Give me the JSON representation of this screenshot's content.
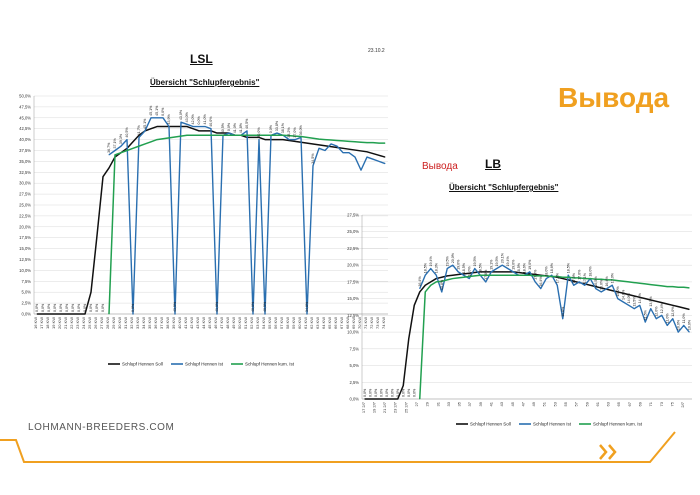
{
  "page": {
    "brand": "LOHMANN-BREEDERS.COM",
    "overlay_word_large": "Вывода",
    "overlay_word_small": "Вывода"
  },
  "chart_data": [
    {
      "type": "line",
      "title": "LSL",
      "subtitle": "Übersicht \"Schlupfergebnis\"",
      "date_stamp": "23.10.2",
      "x_labels": [
        "16 KW",
        "17 KW",
        "18 KW",
        "19 KW",
        "20 KW",
        "21 KW",
        "22 KW",
        "23 KW",
        "24 KW",
        "25 KW",
        "26 KW",
        "27 KW",
        "28 KW",
        "29 KW",
        "30 KW",
        "31 KW",
        "32 KW",
        "33 KW",
        "34 KW",
        "35 KW",
        "36 KW",
        "37 KW",
        "38 KW",
        "39 KW",
        "40 KW",
        "41 KW",
        "42 KW",
        "43 KW",
        "44 KW",
        "45 KW",
        "46 KW",
        "47 KW",
        "48 KW",
        "49 KW",
        "50 KW",
        "51 KW",
        "52 KW",
        "53 KW",
        "54 KW",
        "55 KW",
        "56 KW",
        "57 KW",
        "58 KW",
        "59 KW",
        "60 KW",
        "61 KW",
        "62 KW",
        "63 KW",
        "64 KW",
        "65 KW",
        "66 KW",
        "67 KW",
        "68 KW",
        "69 KW",
        "70 KW",
        "71 KW",
        "72 KW",
        "73 KW",
        "74 KW"
      ],
      "x_tick_labels": [
        "16 KW",
        "17 KW",
        "18 KW",
        "19 KW",
        "20 KW",
        "21 KW",
        "22 KW",
        "23 KW",
        "24 KW",
        "25 KW",
        "26 KW",
        "27 KW",
        "28 KW",
        "29 KW",
        "30 KW",
        "31 KW",
        "32 KW",
        "33 KW",
        "34 KW",
        "35 KW",
        "36 KW",
        "37 KW",
        "38 KW",
        "39 KW",
        "40 KW",
        "41 KW",
        "42 KW",
        "43 KW",
        "44 KW",
        "45 KW",
        "46 KW",
        "47 KW",
        "48 KW",
        "49 KW",
        "50 KW",
        "51 KW",
        "52 KW",
        "53 KW",
        "54 KW",
        "55 KW",
        "56 KW",
        "57 KW",
        "58 KW",
        "59 KW",
        "60 KW",
        "61 KW",
        "62 KW",
        "63 KW",
        "64 KW",
        "65 KW",
        "66 KW",
        "67 KW",
        "68 KW",
        "69 KW",
        "70 KW",
        "71 KW",
        "72 KW",
        "73 KW",
        "74 KW"
      ],
      "ylim": [
        0,
        50
      ],
      "y_ticks": [
        0,
        2.5,
        5,
        7.5,
        10,
        12.5,
        15,
        17.5,
        20,
        22.5,
        25,
        27.5,
        30,
        32.5,
        35,
        37.5,
        40,
        42.5,
        45,
        47.5,
        50
      ],
      "y_tick_labels": [
        "0,0%",
        "2,5%",
        "5,0%",
        "7,5%",
        "10,0%",
        "12,5%",
        "15,0%",
        "17,5%",
        "20,0%",
        "22,5%",
        "25,0%",
        "27,5%",
        "30,0%",
        "32,5%",
        "35,0%",
        "37,5%",
        "40,0%",
        "42,5%",
        "45,0%",
        "47,5%",
        "50,0%"
      ],
      "grid": true,
      "legend_position": "bottom",
      "series": [
        {
          "name": "Schlupf Hennen Soll",
          "color": "#111111",
          "values": [
            0,
            0,
            0,
            0,
            0,
            0,
            0,
            0,
            0,
            5,
            18,
            31.5,
            33.5,
            36,
            37,
            38,
            39.5,
            41,
            42,
            42.5,
            43,
            43,
            43,
            43,
            43,
            43,
            42.5,
            42,
            42,
            42,
            41.5,
            41.5,
            41.5,
            41,
            41,
            40.5,
            40.5,
            40.5,
            40,
            40,
            40,
            40,
            39.8,
            39.6,
            39.4,
            39.2,
            39,
            38.8,
            38.6,
            38.4,
            38.2,
            38,
            37.8,
            37.6,
            37.4,
            37.2,
            36.8,
            36.4,
            36
          ]
        },
        {
          "name": "Schlupf Hennen Ist",
          "color": "#2a6fb0",
          "values": [
            null,
            null,
            null,
            null,
            null,
            null,
            null,
            null,
            null,
            null,
            null,
            null,
            36.5,
            37.5,
            38.5,
            40,
            0,
            40.5,
            42,
            45,
            45,
            45,
            43,
            0,
            44,
            43.5,
            43,
            43,
            43,
            42.5,
            0,
            41,
            41.5,
            41,
            41,
            42,
            0,
            40,
            0,
            41,
            41.5,
            41,
            40,
            40,
            40.5,
            0,
            34,
            38,
            37.5,
            39,
            38.5,
            37,
            37,
            36,
            33,
            36,
            35.5,
            35,
            34.5
          ]
        },
        {
          "name": "Schlupf Hennen kum. Ist",
          "color": "#22a050",
          "values": [
            null,
            null,
            null,
            null,
            null,
            null,
            null,
            null,
            null,
            null,
            null,
            null,
            0,
            36.5,
            37,
            37.5,
            38,
            38.5,
            39,
            39.5,
            40,
            40.2,
            40.4,
            40.6,
            40.8,
            41,
            41,
            41,
            41,
            41,
            41,
            41,
            41,
            41,
            41,
            41,
            41,
            41,
            41,
            41,
            41,
            41,
            40.9,
            40.8,
            40.7,
            40.5,
            40.3,
            40.1,
            40,
            39.9,
            39.8,
            39.7,
            39.6,
            39.5,
            39.4,
            39.3,
            39.3,
            39.2,
            39.2
          ]
        }
      ],
      "data_labels": [
        "0,0%",
        "0,0%",
        "0,0%",
        "0,0%",
        "0,0%",
        "0,0%",
        "0,0%",
        "0,0%",
        "0,0%",
        "0,0%",
        "0,0%",
        "0,0%",
        "36,7%",
        "37,1%",
        "39,3%",
        "40,5%",
        "0,0%",
        "41,7%",
        "45,1%",
        "45,1%",
        "45,1%",
        "0,0%",
        "43,9%",
        "43,5%",
        "43,0%",
        "43,0%",
        "42,0%",
        "0,0%",
        "41,0%",
        "40,0%",
        "41,0%",
        "40,5%",
        "0,0%",
        "41,0%",
        "41,8%",
        "40,5%",
        "40,0%",
        "40,0%",
        "40,5%",
        "0,0%",
        "33,8%",
        "38,1%",
        "38,2%",
        "37,0%",
        "36,0%",
        "34,8%",
        "34,5%"
      ]
    },
    {
      "type": "line",
      "title": "LB",
      "subtitle": "Übersicht \"Schlupfergebnis\"",
      "x_labels": [
        "17",
        "18",
        "19",
        "20",
        "21",
        "22",
        "23",
        "24",
        "25",
        "26",
        "27",
        "28",
        "29",
        "30",
        "31",
        "32",
        "33",
        "34",
        "35",
        "36",
        "37",
        "38",
        "39",
        "40",
        "41",
        "42",
        "43",
        "44",
        "45",
        "46",
        "47",
        "48",
        "49",
        "50",
        "51",
        "52",
        "53",
        "54",
        "55",
        "56",
        "57",
        "58",
        "59",
        "60",
        "61",
        "62",
        "63",
        "64",
        "65",
        "66",
        "67",
        "68",
        "69",
        "70",
        "71",
        "72",
        "73",
        "74",
        "75",
        "76"
      ],
      "x_tick_labels": [
        "17 2/7",
        "19 2/7",
        "21 2/7",
        "23 2/7",
        "25 2/7",
        "27",
        "29",
        "31",
        "33",
        "35",
        "37",
        "39",
        "41",
        "43",
        "45",
        "47",
        "49",
        "51",
        "53",
        "55",
        "57",
        "59",
        "61",
        "63",
        "65",
        "67",
        "69",
        "71",
        "73",
        "75",
        "2/7"
      ],
      "ylim": [
        0,
        27.5
      ],
      "y_ticks": [
        0,
        2.5,
        5,
        7.5,
        10,
        12.5,
        15,
        17.5,
        20,
        22.5,
        25,
        27.5
      ],
      "y_tick_labels": [
        "0,0%",
        "2,5%",
        "5,0%",
        "7,5%",
        "10,0%",
        "12,5%",
        "15,0%",
        "17,5%",
        "20,0%",
        "22,5%",
        "25,0%",
        "27,5%"
      ],
      "grid": true,
      "legend_position": "bottom",
      "series": [
        {
          "name": "Schlupf Hennen Soll",
          "color": "#111111",
          "values": [
            0,
            0,
            0,
            0,
            0,
            0,
            0,
            2,
            9,
            14,
            16,
            17,
            17.5,
            18,
            18.2,
            18.4,
            18.5,
            18.6,
            18.7,
            18.8,
            18.9,
            19,
            19,
            19,
            19,
            19,
            19,
            19,
            18.9,
            18.8,
            18.7,
            18.6,
            18.5,
            18.4,
            18.3,
            18.2,
            18,
            17.8,
            17.6,
            17.4,
            17.2,
            17,
            16.8,
            16.6,
            16.4,
            16.2,
            16,
            15.8,
            15.6,
            15.4,
            15.2,
            15,
            14.8,
            14.6,
            14.4,
            14.2,
            14,
            13.8,
            13.6,
            13.4
          ]
        },
        {
          "name": "Schlupf Hennen Ist",
          "color": "#2a6fb0",
          "values": [
            null,
            null,
            null,
            null,
            null,
            null,
            null,
            null,
            null,
            null,
            16.5,
            18.5,
            19.5,
            18.5,
            16,
            19.5,
            20,
            19,
            18.5,
            18,
            19.5,
            18.5,
            17.5,
            19,
            19.5,
            20,
            19.5,
            19,
            18.5,
            18.5,
            19,
            17.5,
            16.5,
            18,
            18.5,
            17,
            12,
            18.5,
            17,
            17.5,
            17,
            18,
            16.5,
            16,
            16.5,
            17,
            15,
            14.5,
            14,
            13.5,
            14,
            11.5,
            13.5,
            12,
            12.5,
            11,
            12,
            10,
            11,
            10
          ]
        },
        {
          "name": "Schlupf Hennen kum. Ist",
          "color": "#22a050",
          "values": [
            null,
            null,
            null,
            null,
            null,
            null,
            null,
            null,
            null,
            null,
            0,
            16,
            17,
            17.5,
            17.6,
            17.8,
            18,
            18.1,
            18.2,
            18.3,
            18.4,
            18.5,
            18.5,
            18.5,
            18.5,
            18.5,
            18.5,
            18.5,
            18.5,
            18.5,
            18.5,
            18.4,
            18.4,
            18.4,
            18.3,
            18.3,
            18.2,
            18.2,
            18.1,
            18.1,
            18,
            18,
            17.9,
            17.9,
            17.8,
            17.8,
            17.7,
            17.6,
            17.5,
            17.4,
            17.3,
            17.2,
            17.1,
            17,
            16.9,
            16.8,
            16.8,
            16.7,
            16.7,
            16.6
          ]
        }
      ],
      "data_labels": [
        "0,0%",
        "0,0%",
        "0,0%",
        "0,0%",
        "0,0%",
        "0,0%",
        "0,0%",
        "0,0%",
        "0,0%",
        "0,0%",
        "16,4%",
        "18,5%",
        "19,4%",
        "18,3%",
        "15,8%",
        "19,5%",
        "20,0%",
        "19,0%",
        "18,5%",
        "18,0%",
        "19,5%",
        "18,5%",
        "17,6%",
        "19,1%",
        "19,5%",
        "20,1%",
        "19,4%",
        "19,0%",
        "18,5%",
        "18,6%",
        "19,0%",
        "17,5%",
        "16,4%",
        "18,0%",
        "18,6%",
        "17,0%",
        "11,8%",
        "18,5%",
        "17,0%",
        "17,6%",
        "17,1%",
        "18,0%",
        "16,5%",
        "16,0%",
        "16,4%",
        "17,0%",
        "15,0%",
        "14,6%",
        "14,0%",
        "13,5%",
        "14,0%",
        "11,5%",
        "13,5%",
        "12,0%",
        "12,4%",
        "11,0%",
        "12,0%",
        "10,0%",
        "11,0%",
        "10,0%"
      ]
    }
  ]
}
